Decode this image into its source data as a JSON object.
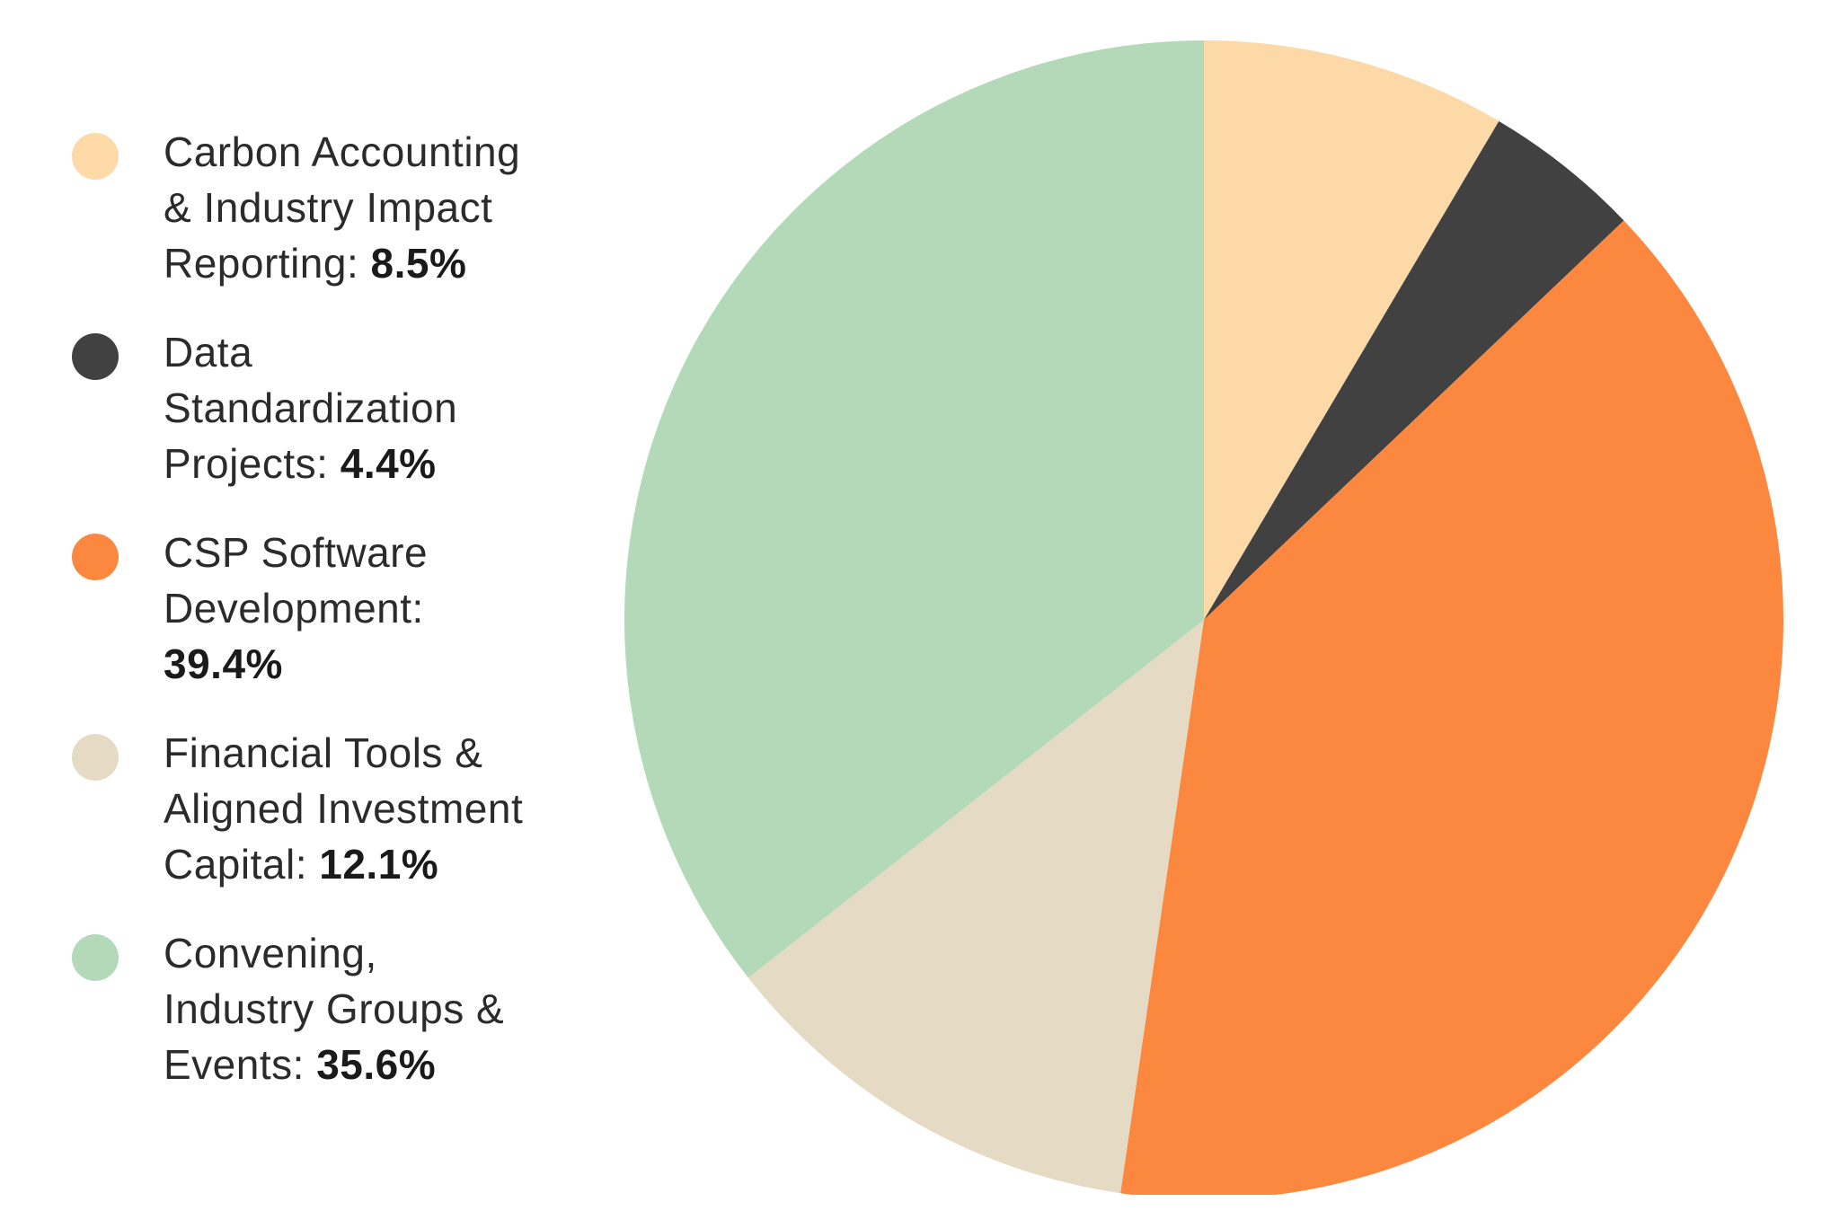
{
  "chart_data": {
    "type": "pie",
    "title": "",
    "legend_position": "left",
    "start_angle": "12 o'clock, clockwise",
    "slices": [
      {
        "label": "Carbon Accounting & Industry Impact Reporting",
        "label_lines": "Carbon Accounting\n& Industry Impact\nReporting: ",
        "value": 8.5,
        "value_label": "8.5%",
        "color": "#FDD9A8"
      },
      {
        "label": "Data Standardization Projects",
        "label_lines": "Data\nStandardization\nProjects: ",
        "value": 4.4,
        "value_label": "4.4%",
        "color": "#414141"
      },
      {
        "label": "CSP Software Development",
        "label_lines": "CSP Software\nDevelopment:\n",
        "value": 39.4,
        "value_label": "39.4%",
        "color": "#FC8840"
      },
      {
        "label": "Financial Tools & Aligned Investment Capital",
        "label_lines": "Financial Tools &\nAligned Investment\nCapital: ",
        "value": 12.1,
        "value_label": "12.1%",
        "color": "#E5DAC4"
      },
      {
        "label": "Convening, Industry Groups & Events",
        "label_lines": "Convening,\nIndustry Groups &\nEvents: ",
        "value": 35.6,
        "value_label": "35.6%",
        "color": "#B3D9B8"
      }
    ]
  }
}
